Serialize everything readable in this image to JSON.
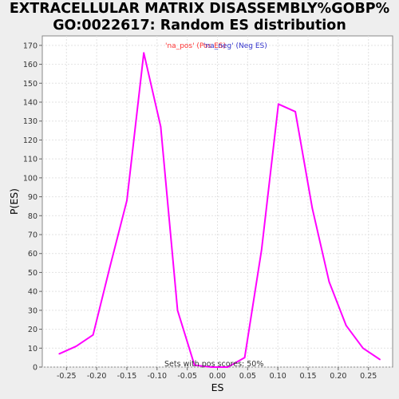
{
  "chart_data": {
    "type": "line",
    "title_lines": [
      "EXTRACELLULAR MATRIX DISASSEMBLY%GOBP%",
      "GO:0022617: Random ES distribution"
    ],
    "xlabel": "ES",
    "ylabel": "P(ES)",
    "xlim": [
      -0.29,
      0.29
    ],
    "ylim": [
      0,
      175
    ],
    "xticks": [
      -0.25,
      -0.2,
      -0.15,
      -0.1,
      -0.05,
      0.0,
      0.05,
      0.1,
      0.15,
      0.2,
      0.25
    ],
    "xtick_labels": [
      "-0.25",
      "-0.20",
      "-0.15",
      "-0.10",
      "-0.05",
      "0.00",
      "0.05",
      "0.10",
      "0.15",
      "0.20",
      "0.25"
    ],
    "yticks": [
      0,
      10,
      20,
      30,
      40,
      50,
      60,
      70,
      80,
      90,
      100,
      110,
      120,
      130,
      140,
      150,
      160,
      170
    ],
    "grid": true,
    "series": [
      {
        "name": "'na_pos' (Pos ES)",
        "color": "#ff00ff",
        "x": [
          -0.262,
          -0.234,
          -0.206,
          -0.178,
          -0.15,
          -0.122,
          -0.094,
          -0.066,
          -0.038
        ],
        "y": [
          7,
          11,
          17,
          53,
          88,
          166,
          127,
          30,
          1
        ]
      },
      {
        "name": "'na_neg' (Neg ES)",
        "color": "#ff00ff",
        "x": [
          -0.038,
          -0.01,
          0.017,
          0.045,
          0.073,
          0.101,
          0.129,
          0.157,
          0.185,
          0.213,
          0.241,
          0.269
        ],
        "y": [
          1,
          0,
          0,
          5,
          62,
          139,
          135,
          84,
          45,
          22,
          10,
          4
        ]
      }
    ],
    "legend": [
      {
        "label": "'na_pos' (Pos ES)",
        "color": "#ff3333"
      },
      {
        "label": "'na_neg' (Neg ES)",
        "color": "#3333cc"
      }
    ],
    "legend_placement": "top-center",
    "annotation": "Sets with pos scores: 50%"
  }
}
